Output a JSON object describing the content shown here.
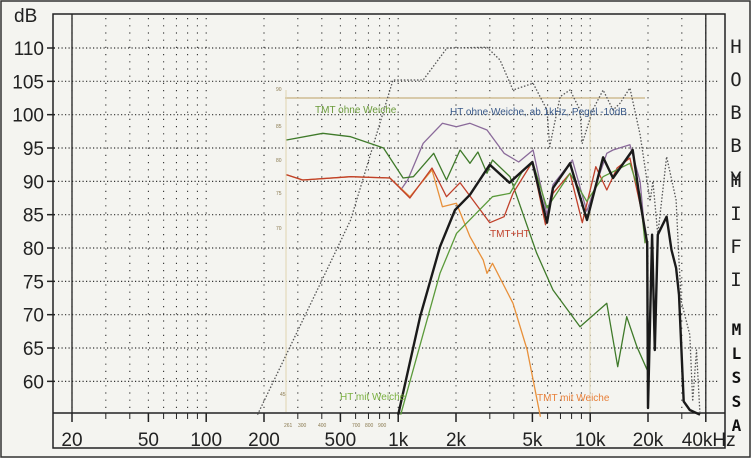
{
  "chart_data": {
    "type": "line",
    "xscale": "log",
    "xlim": [
      15,
      45000
    ],
    "ylim": [
      55,
      113
    ],
    "yunit": "dB",
    "grid": true,
    "yticks": [
      60,
      65,
      70,
      75,
      80,
      85,
      90,
      95,
      100,
      105,
      110
    ],
    "xticks": [
      {
        "value": 20,
        "label": "20"
      },
      {
        "value": 50,
        "label": "50"
      },
      {
        "value": 100,
        "label": "100"
      },
      {
        "value": 200,
        "label": "200"
      },
      {
        "value": 500,
        "label": "500"
      },
      {
        "value": 1000,
        "label": "1k"
      },
      {
        "value": 2000,
        "label": "2k"
      },
      {
        "value": 5000,
        "label": "5k"
      },
      {
        "value": 10000,
        "label": "10k"
      },
      {
        "value": 20000,
        "label": "20k"
      },
      {
        "value": 40000,
        "label": "40kHz"
      }
    ],
    "inset_ytick_labels": [
      "90",
      "85",
      "80",
      "75",
      "70",
      "45"
    ],
    "inset_xtick_labels": [
      "261",
      "300",
      "400",
      "700",
      "800",
      "900"
    ],
    "series": [
      {
        "style": "dotted",
        "color": "#555555",
        "points": [
          [
            185,
            55
          ],
          [
            457,
            78.6
          ],
          [
            565,
            84.2
          ],
          [
            940,
            105.2
          ],
          [
            1350,
            105.2
          ],
          [
            1796,
            110
          ],
          [
            2900,
            110.1
          ],
          [
            3390,
            108.2
          ],
          [
            3960,
            103.7
          ],
          [
            5040,
            104.7
          ],
          [
            5960,
            100.7
          ],
          [
            6150,
            95.2
          ],
          [
            6970,
            102.7
          ],
          [
            7850,
            103.7
          ],
          [
            8850,
            100.7
          ],
          [
            9100,
            95.7
          ],
          [
            10300,
            100.7
          ],
          [
            11670,
            103.7
          ],
          [
            13150,
            100.7
          ],
          [
            14300,
            101.7
          ],
          [
            16100,
            104
          ],
          [
            18200,
            97
          ],
          [
            20500,
            87
          ],
          [
            21200,
            90
          ],
          [
            22500,
            82
          ],
          [
            25000,
            93.7
          ],
          [
            28000,
            87.2
          ],
          [
            29000,
            78
          ],
          [
            29800,
            72
          ],
          [
            33000,
            67
          ],
          [
            34200,
            57
          ],
          [
            35800,
            64.7
          ],
          [
            37300,
            55
          ]
        ]
      },
      {
        "name": "HT ohne Weiche, ab 1kHz, Pegel -10dB",
        "label_color": "#3a5a8a",
        "color": "#8a6a9a",
        "points": [
          [
            1030,
            88.7
          ],
          [
            1120,
            90.2
          ],
          [
            1350,
            95.7
          ],
          [
            1700,
            98.7
          ],
          [
            2010,
            98.2
          ],
          [
            2365,
            98.7
          ],
          [
            2900,
            97.7
          ],
          [
            3560,
            94.2
          ],
          [
            4240,
            92.9
          ],
          [
            5040,
            94.7
          ],
          [
            5960,
            85
          ],
          [
            6400,
            89.5
          ],
          [
            8080,
            93.2
          ],
          [
            9600,
            85.5
          ],
          [
            12200,
            94.2
          ],
          [
            13150,
            94.7
          ],
          [
            16100,
            95.5
          ],
          [
            18200,
            90
          ],
          [
            19300,
            82
          ]
        ]
      },
      {
        "name": "TMT ohne Weiche",
        "color": "#3f7a2a",
        "points": [
          [
            262,
            96.2
          ],
          [
            405,
            97.2
          ],
          [
            565,
            96.7
          ],
          [
            838,
            95
          ],
          [
            1060,
            90.5
          ],
          [
            1200,
            90.7
          ],
          [
            1530,
            94.2
          ],
          [
            1785,
            90.2
          ],
          [
            2100,
            94.7
          ],
          [
            2365,
            92.7
          ],
          [
            2600,
            94.4
          ],
          [
            2900,
            91.2
          ],
          [
            3100,
            93.2
          ],
          [
            3820,
            90.7
          ],
          [
            5250,
            79.3
          ],
          [
            6400,
            73.7
          ],
          [
            8850,
            68.2
          ],
          [
            12200,
            71.7
          ],
          [
            13900,
            62.2
          ],
          [
            15500,
            69.7
          ],
          [
            17500,
            65.2
          ],
          [
            19800,
            61.7
          ]
        ]
      },
      {
        "name": "TMT mit Weiche",
        "color": "#e8903a",
        "points": [
          [
            262,
            91
          ],
          [
            318,
            90.2
          ],
          [
            565,
            90.7
          ],
          [
            905,
            90.5
          ],
          [
            1150,
            87.7
          ],
          [
            1500,
            91.7
          ],
          [
            1700,
            86.2
          ],
          [
            2010,
            86.7
          ],
          [
            2365,
            81.7
          ],
          [
            2770,
            78.2
          ],
          [
            2900,
            76.2
          ],
          [
            3100,
            77.7
          ],
          [
            3960,
            71.7
          ],
          [
            4700,
            64.7
          ],
          [
            5500,
            54.7
          ]
        ]
      },
      {
        "name": "TMT+HT",
        "color": "#c0402a",
        "points": [
          [
            262,
            91
          ],
          [
            318,
            90.2
          ],
          [
            565,
            90.7
          ],
          [
            905,
            90.5
          ],
          [
            1150,
            87.5
          ],
          [
            1500,
            92
          ],
          [
            1785,
            87.7
          ],
          [
            2100,
            89.8
          ],
          [
            3000,
            83.8
          ],
          [
            3560,
            84.7
          ],
          [
            3960,
            88.2
          ],
          [
            5000,
            92.9
          ],
          [
            5850,
            83.5
          ],
          [
            6400,
            88.2
          ],
          [
            7850,
            91.2
          ],
          [
            9100,
            83.8
          ],
          [
            10700,
            92.2
          ],
          [
            12200,
            88.7
          ],
          [
            13800,
            92
          ],
          [
            16100,
            93.5
          ],
          [
            18800,
            84.7
          ],
          [
            19800,
            80
          ]
        ]
      },
      {
        "name": "HT mit Weiche",
        "color": "#5a9a3a",
        "points": [
          [
            1030,
            55
          ],
          [
            1650,
            76.2
          ],
          [
            2015,
            82.2
          ],
          [
            3100,
            87.7
          ],
          [
            3820,
            88.2
          ],
          [
            4480,
            91.7
          ],
          [
            5040,
            92.7
          ],
          [
            5960,
            86
          ],
          [
            7850,
            91.2
          ],
          [
            9600,
            87
          ],
          [
            11670,
            90.7
          ],
          [
            16100,
            92.7
          ],
          [
            18200,
            88
          ],
          [
            19300,
            80.7
          ]
        ]
      },
      {
        "style": "thick",
        "color": "#1a1a1a",
        "points": [
          [
            1000,
            55
          ],
          [
            1300,
            69.7
          ],
          [
            1650,
            80.2
          ],
          [
            1975,
            85.7
          ],
          [
            2365,
            88
          ],
          [
            3000,
            92.5
          ],
          [
            3800,
            89.8
          ],
          [
            5000,
            92.9
          ],
          [
            5960,
            83.8
          ],
          [
            6400,
            89
          ],
          [
            7850,
            92.7
          ],
          [
            9620,
            84.2
          ],
          [
            11670,
            93.6
          ],
          [
            13150,
            90.5
          ],
          [
            16650,
            94.7
          ],
          [
            18200,
            87
          ],
          [
            19800,
            80.7
          ],
          [
            20000,
            56
          ],
          [
            21000,
            82
          ],
          [
            21700,
            64.7
          ],
          [
            22500,
            82
          ],
          [
            25000,
            84.7
          ],
          [
            26500,
            79.7
          ],
          [
            28000,
            77
          ],
          [
            29000,
            73
          ],
          [
            30700,
            57
          ],
          [
            33000,
            55.7
          ],
          [
            37300,
            55
          ]
        ]
      }
    ],
    "annotations": [
      {
        "text": "TMT ohne Weiche",
        "color": "#6a9a3a"
      },
      {
        "text": "HT ohne Weiche, ab 1kHz, Pegel -10dB",
        "color": "#3a5a8a"
      },
      {
        "text": "TMT+HT",
        "color": "#c0402a"
      },
      {
        "text": "HT mit Weiche",
        "color": "#7ab040"
      },
      {
        "text": "TMT mit Weiche",
        "color": "#e8803a"
      }
    ]
  },
  "axis": {
    "y_unit_label": "dB"
  },
  "branding": {
    "hobby": "HOBBY",
    "hifi": "HIFI",
    "mlssa": "MLSSA"
  }
}
